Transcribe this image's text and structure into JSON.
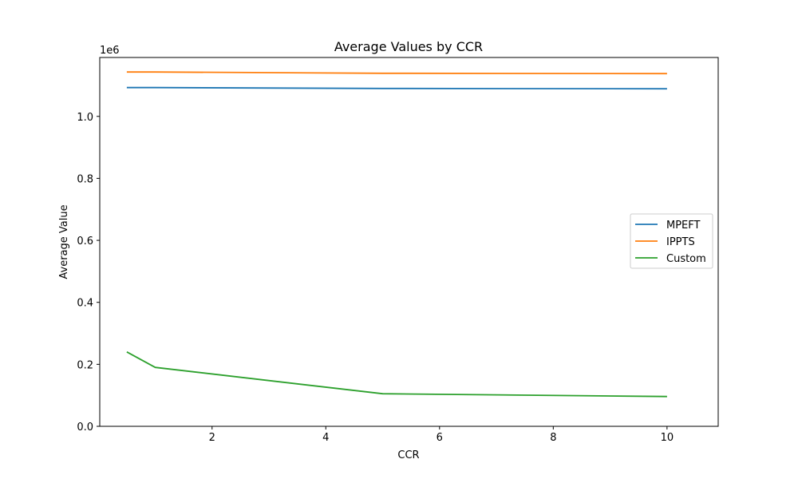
{
  "chart_data": {
    "type": "line",
    "title": "Average Values by CCR",
    "xlabel": "CCR",
    "ylabel": "Average Value",
    "y_offset_label": "1e6",
    "x": [
      0.5,
      1,
      5,
      10
    ],
    "xlim": [
      0.025,
      10.9
    ],
    "ylim": [
      0,
      1.19
    ],
    "x_ticks": [
      2,
      4,
      6,
      8,
      10
    ],
    "y_ticks": [
      0.0,
      0.2,
      0.4,
      0.6,
      0.8,
      1.0
    ],
    "x_tick_labels": [
      "2",
      "4",
      "6",
      "8",
      "10"
    ],
    "y_tick_labels": [
      "0.0",
      "0.2",
      "0.4",
      "0.6",
      "0.8",
      "1.0"
    ],
    "grid": false,
    "legend_position": "center-right",
    "series": [
      {
        "name": "MPEFT",
        "color": "#1f77b4",
        "values": [
          1.093,
          1.093,
          1.09,
          1.089
        ]
      },
      {
        "name": "IPPTS",
        "color": "#ff7f0e",
        "values": [
          1.143,
          1.143,
          1.139,
          1.138
        ]
      },
      {
        "name": "Custom",
        "color": "#2ca02c",
        "values": [
          0.24,
          0.19,
          0.105,
          0.096
        ]
      }
    ]
  }
}
